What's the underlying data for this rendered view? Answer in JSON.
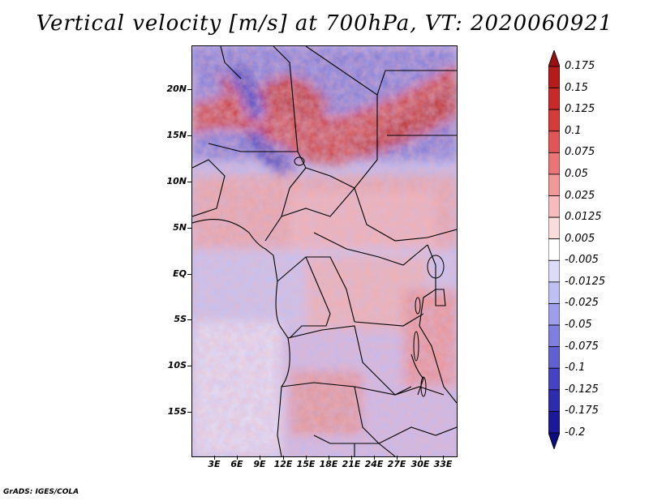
{
  "title": "Vertical velocity [m/s] at 700hPa, VT: 2020060921",
  "footer": "GrADS: IGES/COLA",
  "map": {
    "variable": "Vertical velocity",
    "units": "m/s",
    "level": "700hPa",
    "valid_time": "2020060921",
    "lat_labels": [
      "20N",
      "15N",
      "10N",
      "5N",
      "EQ",
      "5S",
      "10S",
      "15S"
    ],
    "lon_labels": [
      "3E",
      "6E",
      "9E",
      "12E",
      "15E",
      "18E",
      "21E",
      "24E",
      "27E",
      "30E",
      "33E"
    ]
  },
  "colorbar": {
    "labels": [
      "0.175",
      "0.15",
      "0.125",
      "0.1",
      "0.075",
      "0.05",
      "0.025",
      "0.0125",
      "0.005",
      "-0.005",
      "-0.0125",
      "-0.025",
      "-0.05",
      "-0.075",
      "-0.1",
      "-0.125",
      "-0.175",
      "-0.2"
    ],
    "colors": [
      "#9b0f0f",
      "#b41c1c",
      "#c82a2a",
      "#d63b3b",
      "#e05656",
      "#e97676",
      "#f09999",
      "#f6bcbc",
      "#fbdcdc",
      "#ffffff",
      "#dcdcfa",
      "#bfbff4",
      "#9e9eec",
      "#7f7fe0",
      "#6060d2",
      "#4444c2",
      "#2c2cae",
      "#1a1a98",
      "#0c0c80"
    ]
  }
}
